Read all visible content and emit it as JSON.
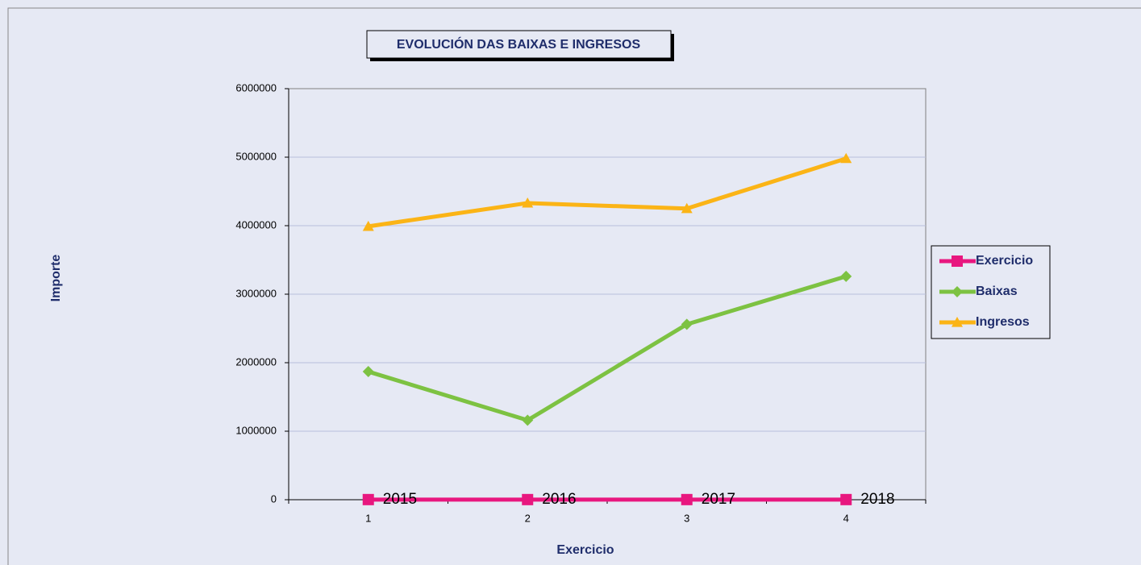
{
  "chart_data": {
    "type": "line",
    "title": "EVOLUCIÓN DAS BAIXAS E INGRESOS",
    "xlabel": "Exercicio",
    "ylabel": "Importe",
    "categories": [
      "1",
      "2",
      "3",
      "4"
    ],
    "series": [
      {
        "name": "Exercicio",
        "color": "#e8177f",
        "marker": "square",
        "values": [
          2015,
          2016,
          2017,
          2018
        ],
        "data_labels": true
      },
      {
        "name": "Baixas",
        "color": "#7dc242",
        "marker": "diamond",
        "values": [
          1870000,
          1160000,
          2560000,
          3260000
        ]
      },
      {
        "name": "Ingresos",
        "color": "#fbb416",
        "marker": "triangle",
        "values": [
          3990000,
          4330000,
          4250000,
          4980000
        ]
      }
    ],
    "ylim": [
      0,
      6000000
    ],
    "yticks": [
      0,
      1000000,
      2000000,
      3000000,
      4000000,
      5000000,
      6000000
    ],
    "grid": true,
    "legend": "right"
  }
}
